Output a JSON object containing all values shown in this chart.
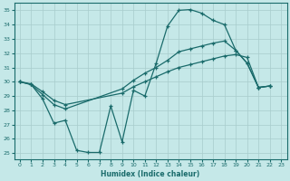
{
  "bg_color": "#c5e8e8",
  "grid_color": "#a8cccc",
  "line_color": "#1a6b6b",
  "xlabel": "Humidex (Indice chaleur)",
  "xlim_min": -0.5,
  "xlim_max": 23.5,
  "ylim_min": 24.6,
  "ylim_max": 35.5,
  "yticks": [
    25,
    26,
    27,
    28,
    29,
    30,
    31,
    32,
    33,
    34,
    35
  ],
  "xticks": [
    0,
    1,
    2,
    3,
    4,
    5,
    6,
    7,
    8,
    9,
    10,
    11,
    12,
    13,
    14,
    15,
    16,
    17,
    18,
    19,
    20,
    21,
    22,
    23
  ],
  "curve1_x": [
    0,
    1,
    2,
    3,
    4,
    5,
    6,
    7,
    8,
    9,
    10,
    11,
    12,
    13,
    14,
    15,
    16,
    17,
    18,
    19,
    20,
    21,
    22
  ],
  "curve1_y": [
    30.0,
    29.8,
    28.8,
    27.1,
    27.3,
    25.2,
    25.05,
    25.05,
    28.3,
    25.8,
    29.4,
    29.0,
    31.3,
    33.9,
    35.0,
    35.05,
    34.8,
    34.3,
    34.0,
    32.2,
    31.3,
    29.6,
    29.7
  ],
  "curve2_x": [
    0,
    1,
    2,
    3,
    4,
    9,
    10,
    11,
    12,
    13,
    14,
    15,
    16,
    17,
    18,
    19,
    20,
    21,
    22
  ],
  "curve2_y": [
    30.0,
    29.8,
    29.1,
    28.4,
    28.1,
    29.5,
    30.1,
    30.6,
    31.0,
    31.5,
    32.1,
    32.3,
    32.5,
    32.7,
    32.85,
    32.2,
    31.3,
    29.6,
    29.7
  ],
  "curve3_x": [
    0,
    1,
    2,
    3,
    4,
    9,
    10,
    11,
    12,
    13,
    14,
    15,
    16,
    17,
    18,
    19,
    20,
    21,
    22
  ],
  "curve3_y": [
    30.0,
    29.85,
    29.3,
    28.7,
    28.4,
    29.2,
    29.65,
    30.0,
    30.35,
    30.7,
    31.0,
    31.2,
    31.4,
    31.6,
    31.8,
    31.9,
    31.7,
    29.6,
    29.7
  ]
}
